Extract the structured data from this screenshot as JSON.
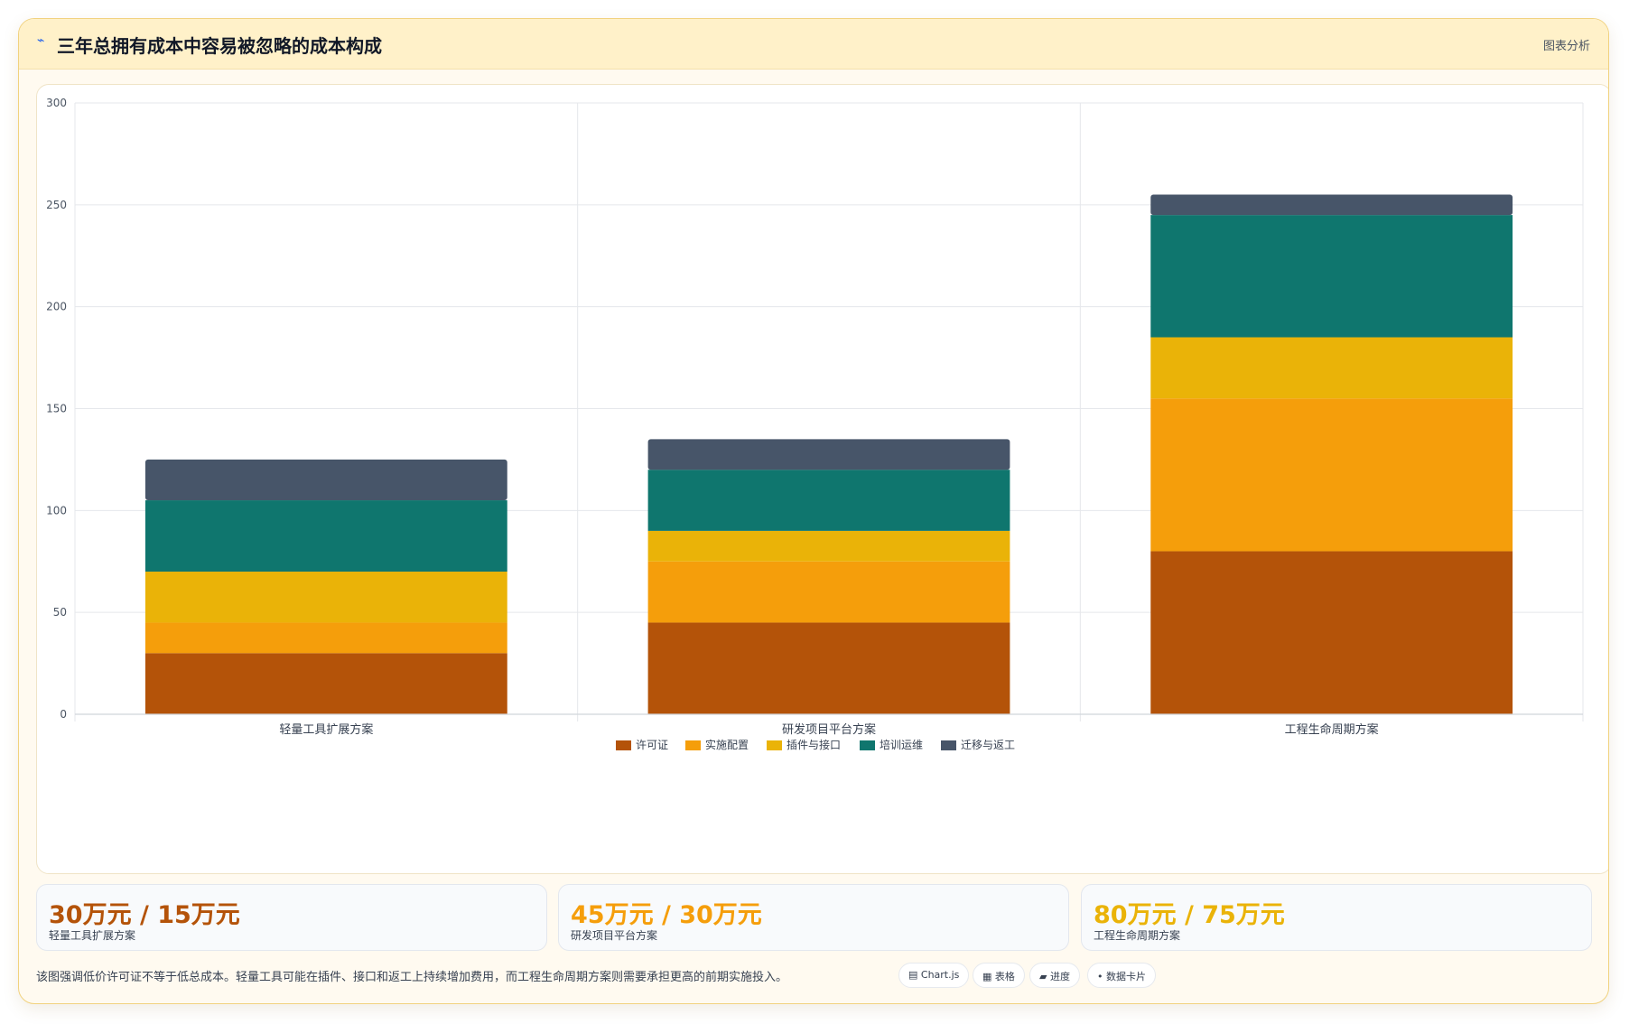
{
  "header": {
    "icon": "line-trend-icon",
    "title": "三年总拥有成本中容易被忽略的成本构成",
    "right_link": "图表分析"
  },
  "chart_data": {
    "type": "bar",
    "stacked": true,
    "categories": [
      "轻量工具扩展方案",
      "研发项目平台方案",
      "工程生命周期方案"
    ],
    "ylim": [
      0,
      300
    ],
    "yticks": [
      "0",
      "50",
      "100",
      "150",
      "200",
      "250",
      "300"
    ],
    "grid": true,
    "legend_position": "bottom",
    "series": [
      {
        "name": "许可证",
        "values": [
          30,
          45,
          80
        ],
        "color": "#b45309"
      },
      {
        "name": "实施配置",
        "values": [
          15,
          30,
          75
        ],
        "color": "#f59e0b"
      },
      {
        "name": "插件与接口",
        "values": [
          25,
          15,
          30
        ],
        "color": "#eab308"
      },
      {
        "name": "培训运维",
        "values": [
          35,
          30,
          60
        ],
        "color": "#0f766e"
      },
      {
        "name": "迁移与返工",
        "values": [
          20,
          15,
          10
        ],
        "color": "#475569"
      }
    ]
  },
  "stats": [
    {
      "value": "30万元 / 15万元",
      "label": "轻量工具扩展方案",
      "color": "#b45309"
    },
    {
      "value": "45万元 / 30万元",
      "label": "研发项目平台方案",
      "color": "#f59e0b"
    },
    {
      "value": "80万元 / 75万元",
      "label": "工程生命周期方案",
      "color": "#eab308"
    }
  ],
  "footer": {
    "note": "该图强调低价许可证不等于低总成本。轻量工具可能在插件、接口和返工上持续增加费用，而工程生命周期方案则需要承担更高的前期实施投入。",
    "pills": [
      {
        "label": "▤ Chart.js",
        "icon": "chart-icon"
      },
      {
        "label": "▦ 表格",
        "icon": "table-icon"
      },
      {
        "label": "▰ 进度",
        "icon": "progress-icon"
      },
      {
        "label": "• 数据卡片",
        "icon": "data-card-icon"
      }
    ]
  }
}
